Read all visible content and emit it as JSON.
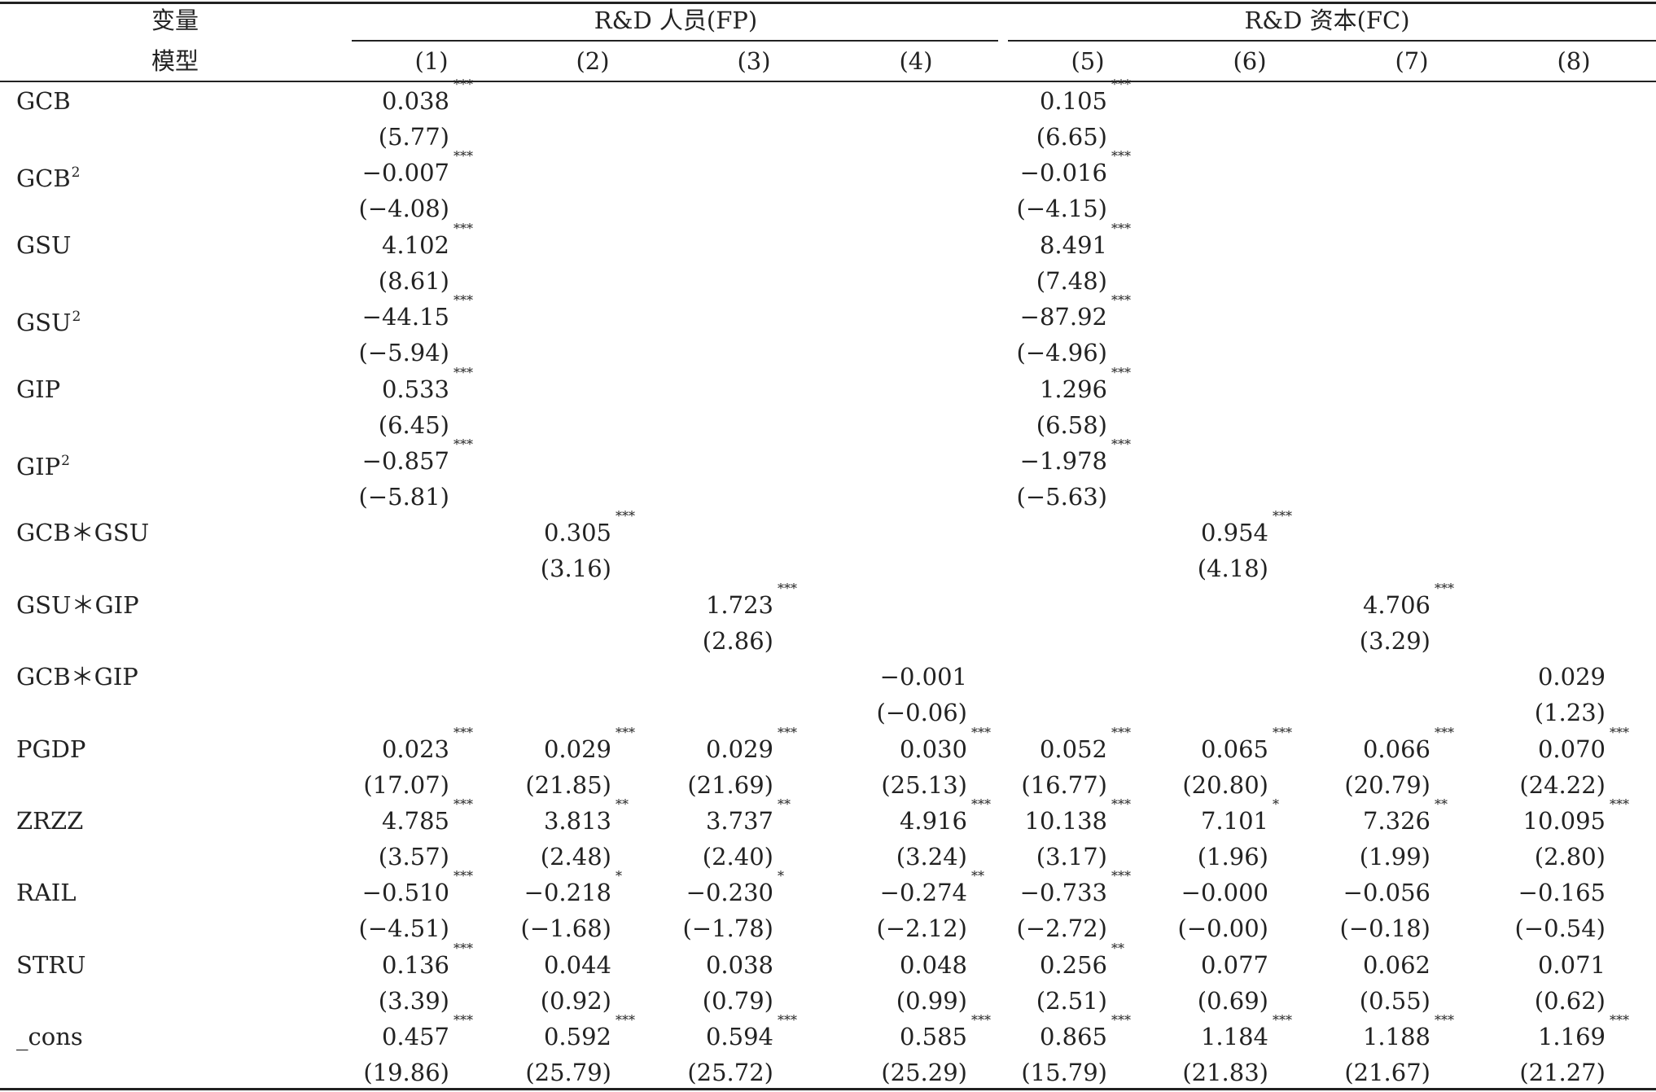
{
  "header": {
    "variable": "变量",
    "model": "模型",
    "group_fp": "R&D 人员(FP)",
    "group_fc": "R&D 资本(FC)",
    "models": [
      "(1)",
      "(2)",
      "(3)",
      "(4)",
      "(5)",
      "(6)",
      "(7)",
      "(8)"
    ]
  },
  "rows": [
    {
      "label": "GCB",
      "sup": "",
      "coef": [
        [
          "0.038",
          "***"
        ],
        null,
        null,
        null,
        [
          "0.105",
          "***"
        ],
        null,
        null,
        null
      ],
      "t": [
        "(5.77)",
        null,
        null,
        null,
        "(6.65)",
        null,
        null,
        null
      ]
    },
    {
      "label": "GCB",
      "sup": "2",
      "coef": [
        [
          "−0.007",
          "***"
        ],
        null,
        null,
        null,
        [
          "−0.016",
          "***"
        ],
        null,
        null,
        null
      ],
      "t": [
        "(−4.08)",
        null,
        null,
        null,
        "(−4.15)",
        null,
        null,
        null
      ]
    },
    {
      "label": "GSU",
      "sup": "",
      "coef": [
        [
          "4.102",
          "***"
        ],
        null,
        null,
        null,
        [
          "8.491",
          "***"
        ],
        null,
        null,
        null
      ],
      "t": [
        "(8.61)",
        null,
        null,
        null,
        "(7.48)",
        null,
        null,
        null
      ]
    },
    {
      "label": "GSU",
      "sup": "2",
      "coef": [
        [
          "−44.15",
          "***"
        ],
        null,
        null,
        null,
        [
          "−87.92",
          "***"
        ],
        null,
        null,
        null
      ],
      "t": [
        "(−5.94)",
        null,
        null,
        null,
        "(−4.96)",
        null,
        null,
        null
      ]
    },
    {
      "label": "GIP",
      "sup": "",
      "coef": [
        [
          "0.533",
          "***"
        ],
        null,
        null,
        null,
        [
          "1.296",
          "***"
        ],
        null,
        null,
        null
      ],
      "t": [
        "(6.45)",
        null,
        null,
        null,
        "(6.58)",
        null,
        null,
        null
      ]
    },
    {
      "label": "GIP",
      "sup": "2",
      "coef": [
        [
          "−0.857",
          "***"
        ],
        null,
        null,
        null,
        [
          "−1.978",
          "***"
        ],
        null,
        null,
        null
      ],
      "t": [
        "(−5.81)",
        null,
        null,
        null,
        "(−5.63)",
        null,
        null,
        null
      ]
    },
    {
      "label": "GCB＊GSU",
      "sup": "",
      "coef": [
        null,
        [
          "0.305",
          "***"
        ],
        null,
        null,
        null,
        [
          "0.954",
          "***"
        ],
        null,
        null
      ],
      "t": [
        null,
        "(3.16)",
        null,
        null,
        null,
        "(4.18)",
        null,
        null
      ]
    },
    {
      "label": "GSU＊GIP",
      "sup": "",
      "coef": [
        null,
        null,
        [
          "1.723",
          "***"
        ],
        null,
        null,
        null,
        [
          "4.706",
          "***"
        ],
        null
      ],
      "t": [
        null,
        null,
        "(2.86)",
        null,
        null,
        null,
        "(3.29)",
        null
      ]
    },
    {
      "label": "GCB＊GIP",
      "sup": "",
      "coef": [
        null,
        null,
        null,
        [
          "−0.001",
          ""
        ],
        null,
        null,
        null,
        [
          "0.029",
          ""
        ]
      ],
      "t": [
        null,
        null,
        null,
        "(−0.06)",
        null,
        null,
        null,
        "(1.23)"
      ]
    },
    {
      "label": "PGDP",
      "sup": "",
      "coef": [
        [
          "0.023",
          "***"
        ],
        [
          "0.029",
          "***"
        ],
        [
          "0.029",
          "***"
        ],
        [
          "0.030",
          "***"
        ],
        [
          "0.052",
          "***"
        ],
        [
          "0.065",
          "***"
        ],
        [
          "0.066",
          "***"
        ],
        [
          "0.070",
          "***"
        ]
      ],
      "t": [
        "(17.07)",
        "(21.85)",
        "(21.69)",
        "(25.13)",
        "(16.77)",
        "(20.80)",
        "(20.79)",
        "(24.22)"
      ]
    },
    {
      "label": "ZRZZ",
      "sup": "",
      "coef": [
        [
          "4.785",
          "***"
        ],
        [
          "3.813",
          "**"
        ],
        [
          "3.737",
          "**"
        ],
        [
          "4.916",
          "***"
        ],
        [
          "10.138",
          "***"
        ],
        [
          "7.101",
          "*"
        ],
        [
          "7.326",
          "**"
        ],
        [
          "10.095",
          "***"
        ]
      ],
      "t": [
        "(3.57)",
        "(2.48)",
        "(2.40)",
        "(3.24)",
        "(3.17)",
        "(1.96)",
        "(1.99)",
        "(2.80)"
      ]
    },
    {
      "label": "RAIL",
      "sup": "",
      "coef": [
        [
          "−0.510",
          "***"
        ],
        [
          "−0.218",
          "*"
        ],
        [
          "−0.230",
          "*"
        ],
        [
          "−0.274",
          "**"
        ],
        [
          "−0.733",
          "***"
        ],
        [
          "−0.000",
          ""
        ],
        [
          "−0.056",
          ""
        ],
        [
          "−0.165",
          ""
        ]
      ],
      "t": [
        "(−4.51)",
        "(−1.68)",
        "(−1.78)",
        "(−2.12)",
        "(−2.72)",
        "(−0.00)",
        "(−0.18)",
        "(−0.54)"
      ]
    },
    {
      "label": "STRU",
      "sup": "",
      "coef": [
        [
          "0.136",
          "***"
        ],
        [
          "0.044",
          ""
        ],
        [
          "0.038",
          ""
        ],
        [
          "0.048",
          ""
        ],
        [
          "0.256",
          "**"
        ],
        [
          "0.077",
          ""
        ],
        [
          "0.062",
          ""
        ],
        [
          "0.071",
          ""
        ]
      ],
      "t": [
        "(3.39)",
        "(0.92)",
        "(0.79)",
        "(0.99)",
        "(2.51)",
        "(0.69)",
        "(0.55)",
        "(0.62)"
      ]
    },
    {
      "label": "_cons",
      "sup": "",
      "coef": [
        [
          "0.457",
          "***"
        ],
        [
          "0.592",
          "***"
        ],
        [
          "0.594",
          "***"
        ],
        [
          "0.585",
          "***"
        ],
        [
          "0.865",
          "***"
        ],
        [
          "1.184",
          "***"
        ],
        [
          "1.188",
          "***"
        ],
        [
          "1.169",
          "***"
        ]
      ],
      "t": [
        "(19.86)",
        "(25.79)",
        "(25.72)",
        "(25.29)",
        "(15.79)",
        "(21.83)",
        "(21.67)",
        "(21.27)"
      ]
    }
  ]
}
